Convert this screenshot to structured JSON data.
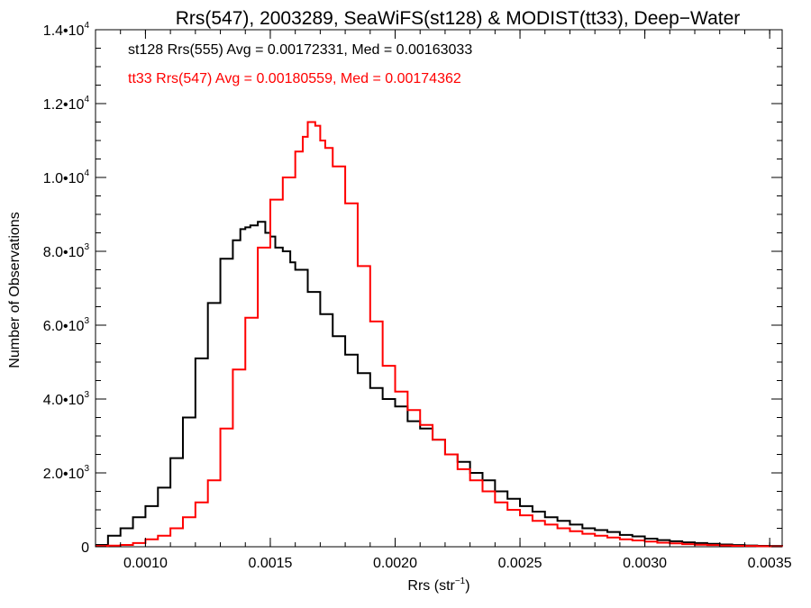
{
  "chart_data": {
    "type": "line",
    "title": "Rrs(547), 2003289, SeaWiFS(st128) & MODIST(tt33), Deep−Water",
    "xlabel": "Rrs (str",
    "xlabel_sup": "−1",
    "xlabel_close": ")",
    "ylabel": "Number of Observations",
    "xlim": [
      0.0008,
      0.00355
    ],
    "ylim": [
      0,
      14000
    ],
    "grid": false,
    "step": true,
    "x_ticks": [
      {
        "value": 0.001,
        "label": "0.0010"
      },
      {
        "value": 0.0015,
        "label": "0.0015"
      },
      {
        "value": 0.002,
        "label": "0.0020"
      },
      {
        "value": 0.0025,
        "label": "0.0025"
      },
      {
        "value": 0.003,
        "label": "0.0030"
      },
      {
        "value": 0.0035,
        "label": "0.0035"
      }
    ],
    "y_ticks": [
      {
        "value": 0,
        "mant": "0",
        "exp": ""
      },
      {
        "value": 2000,
        "mant": "2.0•10",
        "exp": "3"
      },
      {
        "value": 4000,
        "mant": "4.0•10",
        "exp": "3"
      },
      {
        "value": 6000,
        "mant": "6.0•10",
        "exp": "3"
      },
      {
        "value": 8000,
        "mant": "8.0•10",
        "exp": "3"
      },
      {
        "value": 10000,
        "mant": "1.0•10",
        "exp": "4"
      },
      {
        "value": 12000,
        "mant": "1.2•10",
        "exp": "4"
      },
      {
        "value": 14000,
        "mant": "1.4•10",
        "exp": "4"
      }
    ],
    "annotations": [
      {
        "text": "st128 Rrs(555) Avg = 0.00172331, Med = 0.00163033",
        "color": "#000000"
      },
      {
        "text": "tt33 Rrs(547) Avg = 0.00180559, Med = 0.00174362",
        "color": "#ff0000"
      }
    ],
    "series": [
      {
        "color": "#000000",
        "x": [
          0.0008,
          0.00085,
          0.0009,
          0.00095,
          0.001,
          0.00105,
          0.0011,
          0.00115,
          0.0012,
          0.00125,
          0.0013,
          0.00135,
          0.00138,
          0.0014,
          0.00142,
          0.00145,
          0.00148,
          0.0015,
          0.00152,
          0.00155,
          0.00158,
          0.0016,
          0.00165,
          0.0017,
          0.00175,
          0.0018,
          0.00185,
          0.0019,
          0.00195,
          0.002,
          0.00205,
          0.0021,
          0.00215,
          0.0022,
          0.00225,
          0.0023,
          0.00235,
          0.0024,
          0.00245,
          0.0025,
          0.00255,
          0.0026,
          0.00265,
          0.0027,
          0.00275,
          0.0028,
          0.00285,
          0.0029,
          0.00295,
          0.003,
          0.00305,
          0.0031,
          0.00315,
          0.0032,
          0.00325,
          0.0033,
          0.00335,
          0.0034,
          0.00345,
          0.0035,
          0.00355
        ],
        "y": [
          50,
          300,
          500,
          800,
          1100,
          1600,
          2400,
          3500,
          5100,
          6600,
          7800,
          8300,
          8600,
          8650,
          8700,
          8800,
          8500,
          8400,
          8100,
          8000,
          7700,
          7500,
          6900,
          6300,
          5700,
          5200,
          4700,
          4300,
          4000,
          3800,
          3400,
          3200,
          2900,
          2500,
          2300,
          2000,
          1800,
          1500,
          1300,
          1100,
          950,
          800,
          700,
          600,
          500,
          450,
          400,
          320,
          280,
          220,
          180,
          150,
          120,
          100,
          80,
          60,
          45,
          35,
          25,
          20,
          15
        ]
      },
      {
        "color": "#ff0000",
        "x": [
          0.0008,
          0.00085,
          0.0009,
          0.00095,
          0.001,
          0.00105,
          0.0011,
          0.00115,
          0.0012,
          0.00125,
          0.0013,
          0.00135,
          0.0014,
          0.00145,
          0.0015,
          0.00155,
          0.0016,
          0.00163,
          0.00165,
          0.00168,
          0.0017,
          0.00172,
          0.00175,
          0.0018,
          0.00185,
          0.0019,
          0.00195,
          0.002,
          0.00205,
          0.0021,
          0.00215,
          0.0022,
          0.00225,
          0.0023,
          0.00235,
          0.0024,
          0.00245,
          0.0025,
          0.00255,
          0.0026,
          0.00265,
          0.0027,
          0.00275,
          0.0028,
          0.00285,
          0.0029,
          0.00295,
          0.003,
          0.00305,
          0.0031,
          0.00315,
          0.0032,
          0.00325,
          0.0033,
          0.00335,
          0.0034,
          0.00345,
          0.0035,
          0.00355
        ],
        "y": [
          20,
          30,
          50,
          100,
          200,
          300,
          500,
          800,
          1200,
          1800,
          3200,
          4800,
          6200,
          8100,
          9400,
          10000,
          10700,
          11100,
          11500,
          11400,
          11000,
          10800,
          10300,
          9300,
          7600,
          6100,
          4900,
          4200,
          3700,
          3300,
          2900,
          2500,
          2100,
          1800,
          1500,
          1200,
          1000,
          850,
          700,
          600,
          500,
          420,
          350,
          300,
          250,
          200,
          170,
          140,
          110,
          90,
          70,
          55,
          45,
          35,
          25,
          20,
          15,
          10,
          8
        ]
      }
    ]
  }
}
